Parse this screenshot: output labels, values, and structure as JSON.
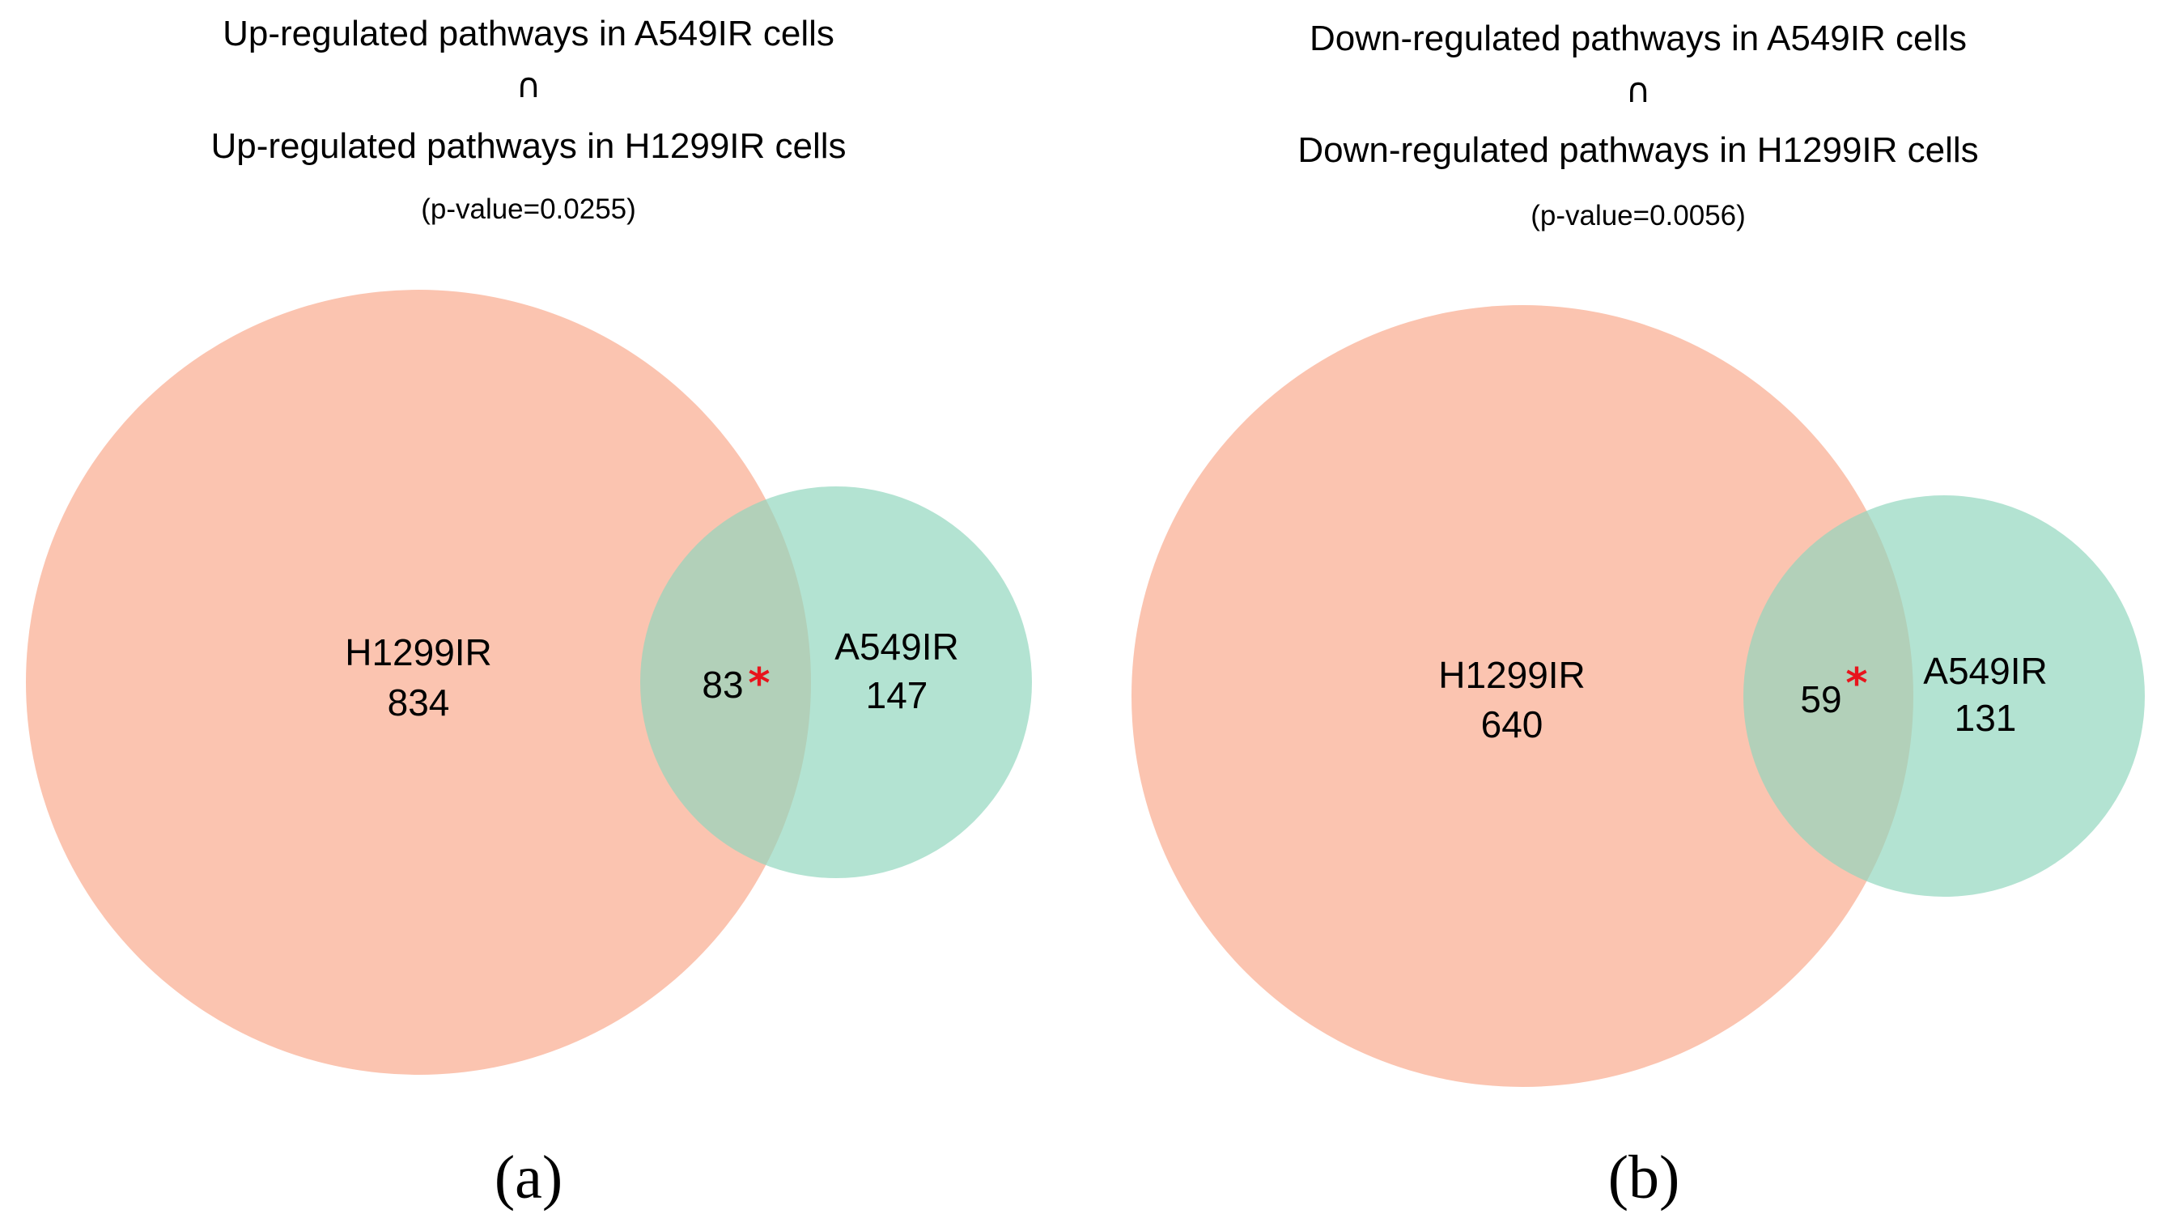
{
  "colors": {
    "set_large": "#f9a88b",
    "set_small": "#8fd6bd",
    "asterisk": "#e8141c",
    "text": "#000000"
  },
  "panels": [
    {
      "title_line1": "Up-regulated pathways in A549IR cells",
      "symbol": "∩",
      "title_line2": "Up-regulated pathways in H1299IR cells",
      "pvalue": "(p-value=0.0255)",
      "set_large_name": "H1299IR",
      "set_large_only": 834,
      "set_small_name": "A549IR",
      "set_small_only": 147,
      "overlap": 83,
      "significance_mark": "*",
      "panel_label": "(a)"
    },
    {
      "title_line1": "Down-regulated pathways in A549IR cells",
      "symbol": "∩",
      "title_line2": "Down-regulated pathways in H1299IR cells",
      "pvalue": "(p-value=0.0056)",
      "set_large_name": "H1299IR",
      "set_large_only": 640,
      "set_small_name": "A549IR",
      "set_small_only": 131,
      "overlap": 59,
      "significance_mark": "*",
      "panel_label": "(b)"
    }
  ]
}
